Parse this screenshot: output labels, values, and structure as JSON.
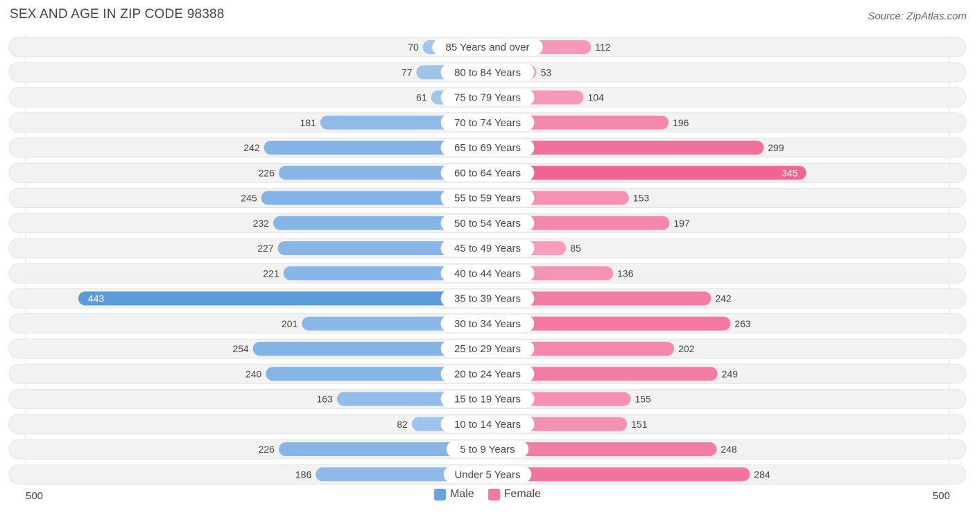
{
  "title": "SEX AND AGE IN ZIP CODE 98388",
  "source": "Source: ZipAtlas.com",
  "colors": {
    "male_light": "#a8c8ec",
    "male_dark": "#5b9bdc",
    "female_light": "#f7a9c3",
    "female_dark": "#f06492",
    "row_bg": "#f2f2f2"
  },
  "legend": {
    "male": "Male",
    "female": "Female"
  },
  "axis": {
    "left_label": "500",
    "right_label": "500"
  },
  "chart_data": {
    "type": "bar",
    "orientation": "horizontal-diverging",
    "categories": [
      "85 Years and over",
      "80 to 84 Years",
      "75 to 79 Years",
      "70 to 74 Years",
      "65 to 69 Years",
      "60 to 64 Years",
      "55 to 59 Years",
      "50 to 54 Years",
      "45 to 49 Years",
      "40 to 44 Years",
      "35 to 39 Years",
      "30 to 34 Years",
      "25 to 29 Years",
      "20 to 24 Years",
      "15 to 19 Years",
      "10 to 14 Years",
      "5 to 9 Years",
      "Under 5 Years"
    ],
    "series": [
      {
        "name": "Male",
        "values": [
          70,
          77,
          61,
          181,
          242,
          226,
          245,
          232,
          227,
          221,
          443,
          201,
          254,
          240,
          163,
          82,
          226,
          186
        ]
      },
      {
        "name": "Female",
        "values": [
          112,
          53,
          104,
          196,
          299,
          345,
          153,
          197,
          85,
          136,
          242,
          263,
          202,
          249,
          155,
          151,
          248,
          284
        ]
      }
    ],
    "xlim": [
      -500,
      500
    ],
    "legend_position": "bottom-center"
  }
}
